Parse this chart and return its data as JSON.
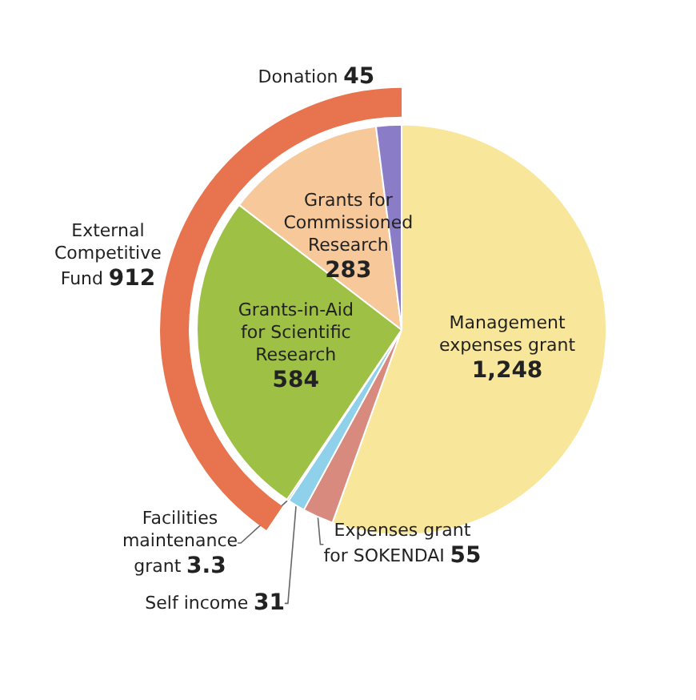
{
  "chart_data": [
    {
      "type": "pie",
      "categories": [
        "Management expenses grant",
        "Expenses grant for SOKENDAI",
        "Self income",
        "Facilities maintenance grant",
        "Grants-in-Aid for Scientific Research",
        "Grants for Commissioned Research",
        "Donation"
      ],
      "values": [
        1248,
        55,
        31,
        3.3,
        584,
        283,
        45
      ],
      "value_labels": [
        "1,248",
        "55",
        "31",
        "3.3",
        "584",
        "283",
        "45"
      ],
      "colors": [
        "#f8e69a",
        "#d98a7e",
        "#8fd0ea",
        "#2a9a4a",
        "#9dc045",
        "#f6c89a",
        "#8b7cc8"
      ]
    },
    {
      "type": "pie",
      "categories": [
        "External Competitive Fund"
      ],
      "values": [
        912
      ],
      "value_labels": [
        "912"
      ],
      "colors": [
        "#e8734f"
      ]
    }
  ]
}
